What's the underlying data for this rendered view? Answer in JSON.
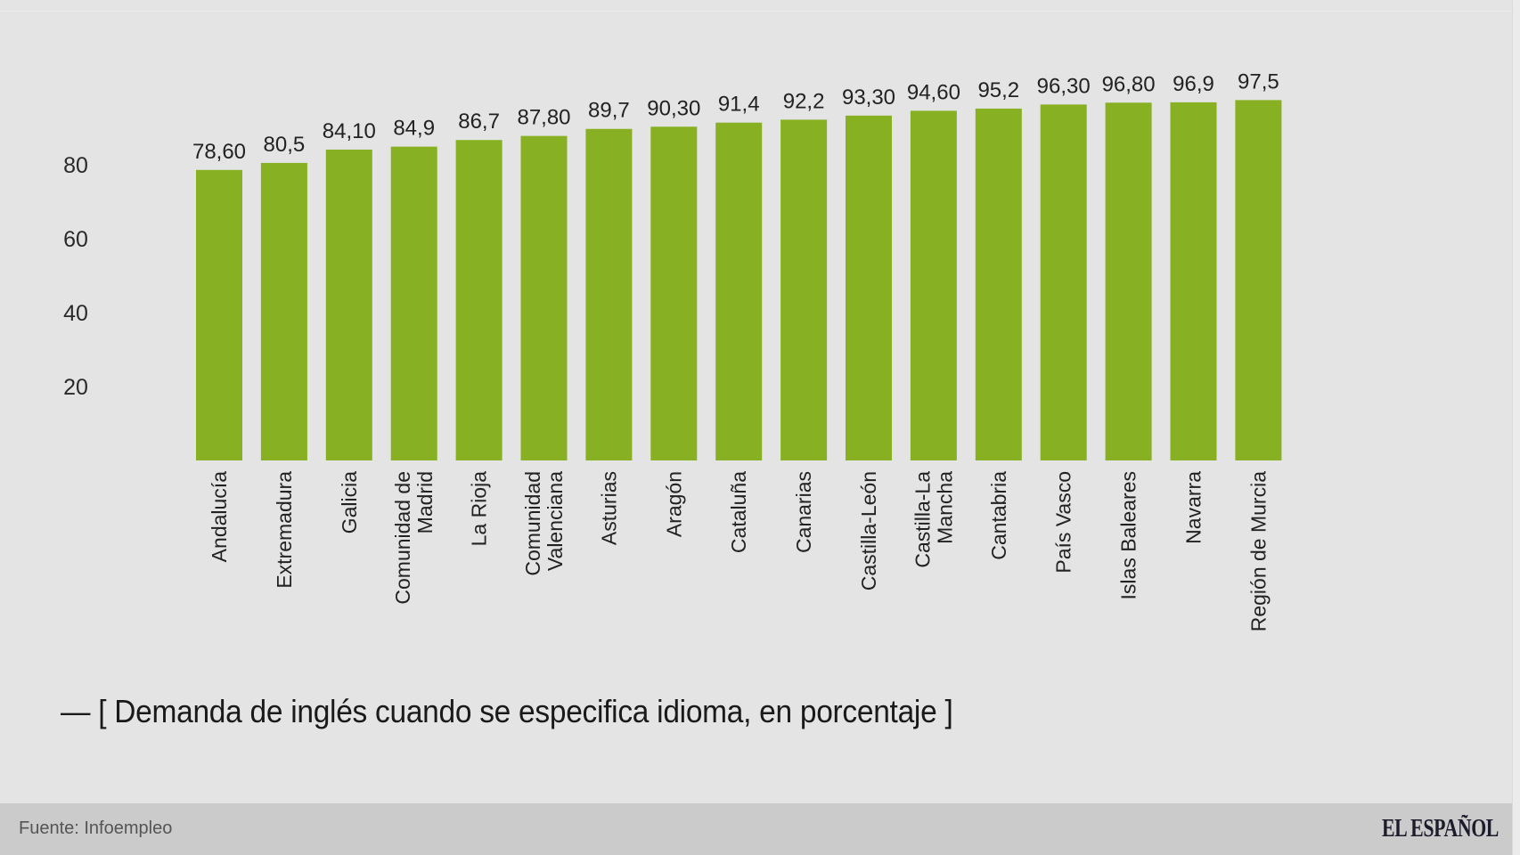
{
  "chart_data": {
    "type": "bar",
    "title": "— [ Demanda de inglés cuando se especifica idioma, en porcentaje ]",
    "xlabel": "",
    "ylabel": "",
    "ylim": [
      0,
      100
    ],
    "yticks": [
      20,
      40,
      60,
      80
    ],
    "grid": false,
    "legend": "none",
    "bar_color": "#87b123",
    "categories": [
      [
        "Andalucía"
      ],
      [
        "Extremadura"
      ],
      [
        "Galicia"
      ],
      [
        "Comunidad de",
        "Madrid"
      ],
      [
        "La Rioja"
      ],
      [
        "Comunidad",
        "Valenciana"
      ],
      [
        "Asturias"
      ],
      [
        "Aragón"
      ],
      [
        "Cataluña"
      ],
      [
        "Canarias"
      ],
      [
        "Castilla-León"
      ],
      [
        "Castilla-La",
        "Mancha"
      ],
      [
        "Cantabria"
      ],
      [
        "País Vasco"
      ],
      [
        "Islas Baleares"
      ],
      [
        "Navarra"
      ],
      [
        "Región de Murcia"
      ]
    ],
    "values": [
      78.6,
      80.5,
      84.1,
      84.9,
      86.7,
      87.8,
      89.7,
      90.3,
      91.4,
      92.2,
      93.3,
      94.6,
      95.2,
      96.3,
      96.8,
      96.9,
      97.5
    ],
    "value_labels": [
      "78,60",
      "80,5",
      "84,10",
      "84,9",
      "86,7",
      "87,80",
      "89,7",
      "90,30",
      "91,4",
      "92,2",
      "93,30",
      "94,60",
      "95,2",
      "96,30",
      "96,80",
      "96,9",
      "97,5"
    ]
  },
  "footer": {
    "source": "Fuente: Infoempleo",
    "logo": "EL ESPAÑOL"
  }
}
